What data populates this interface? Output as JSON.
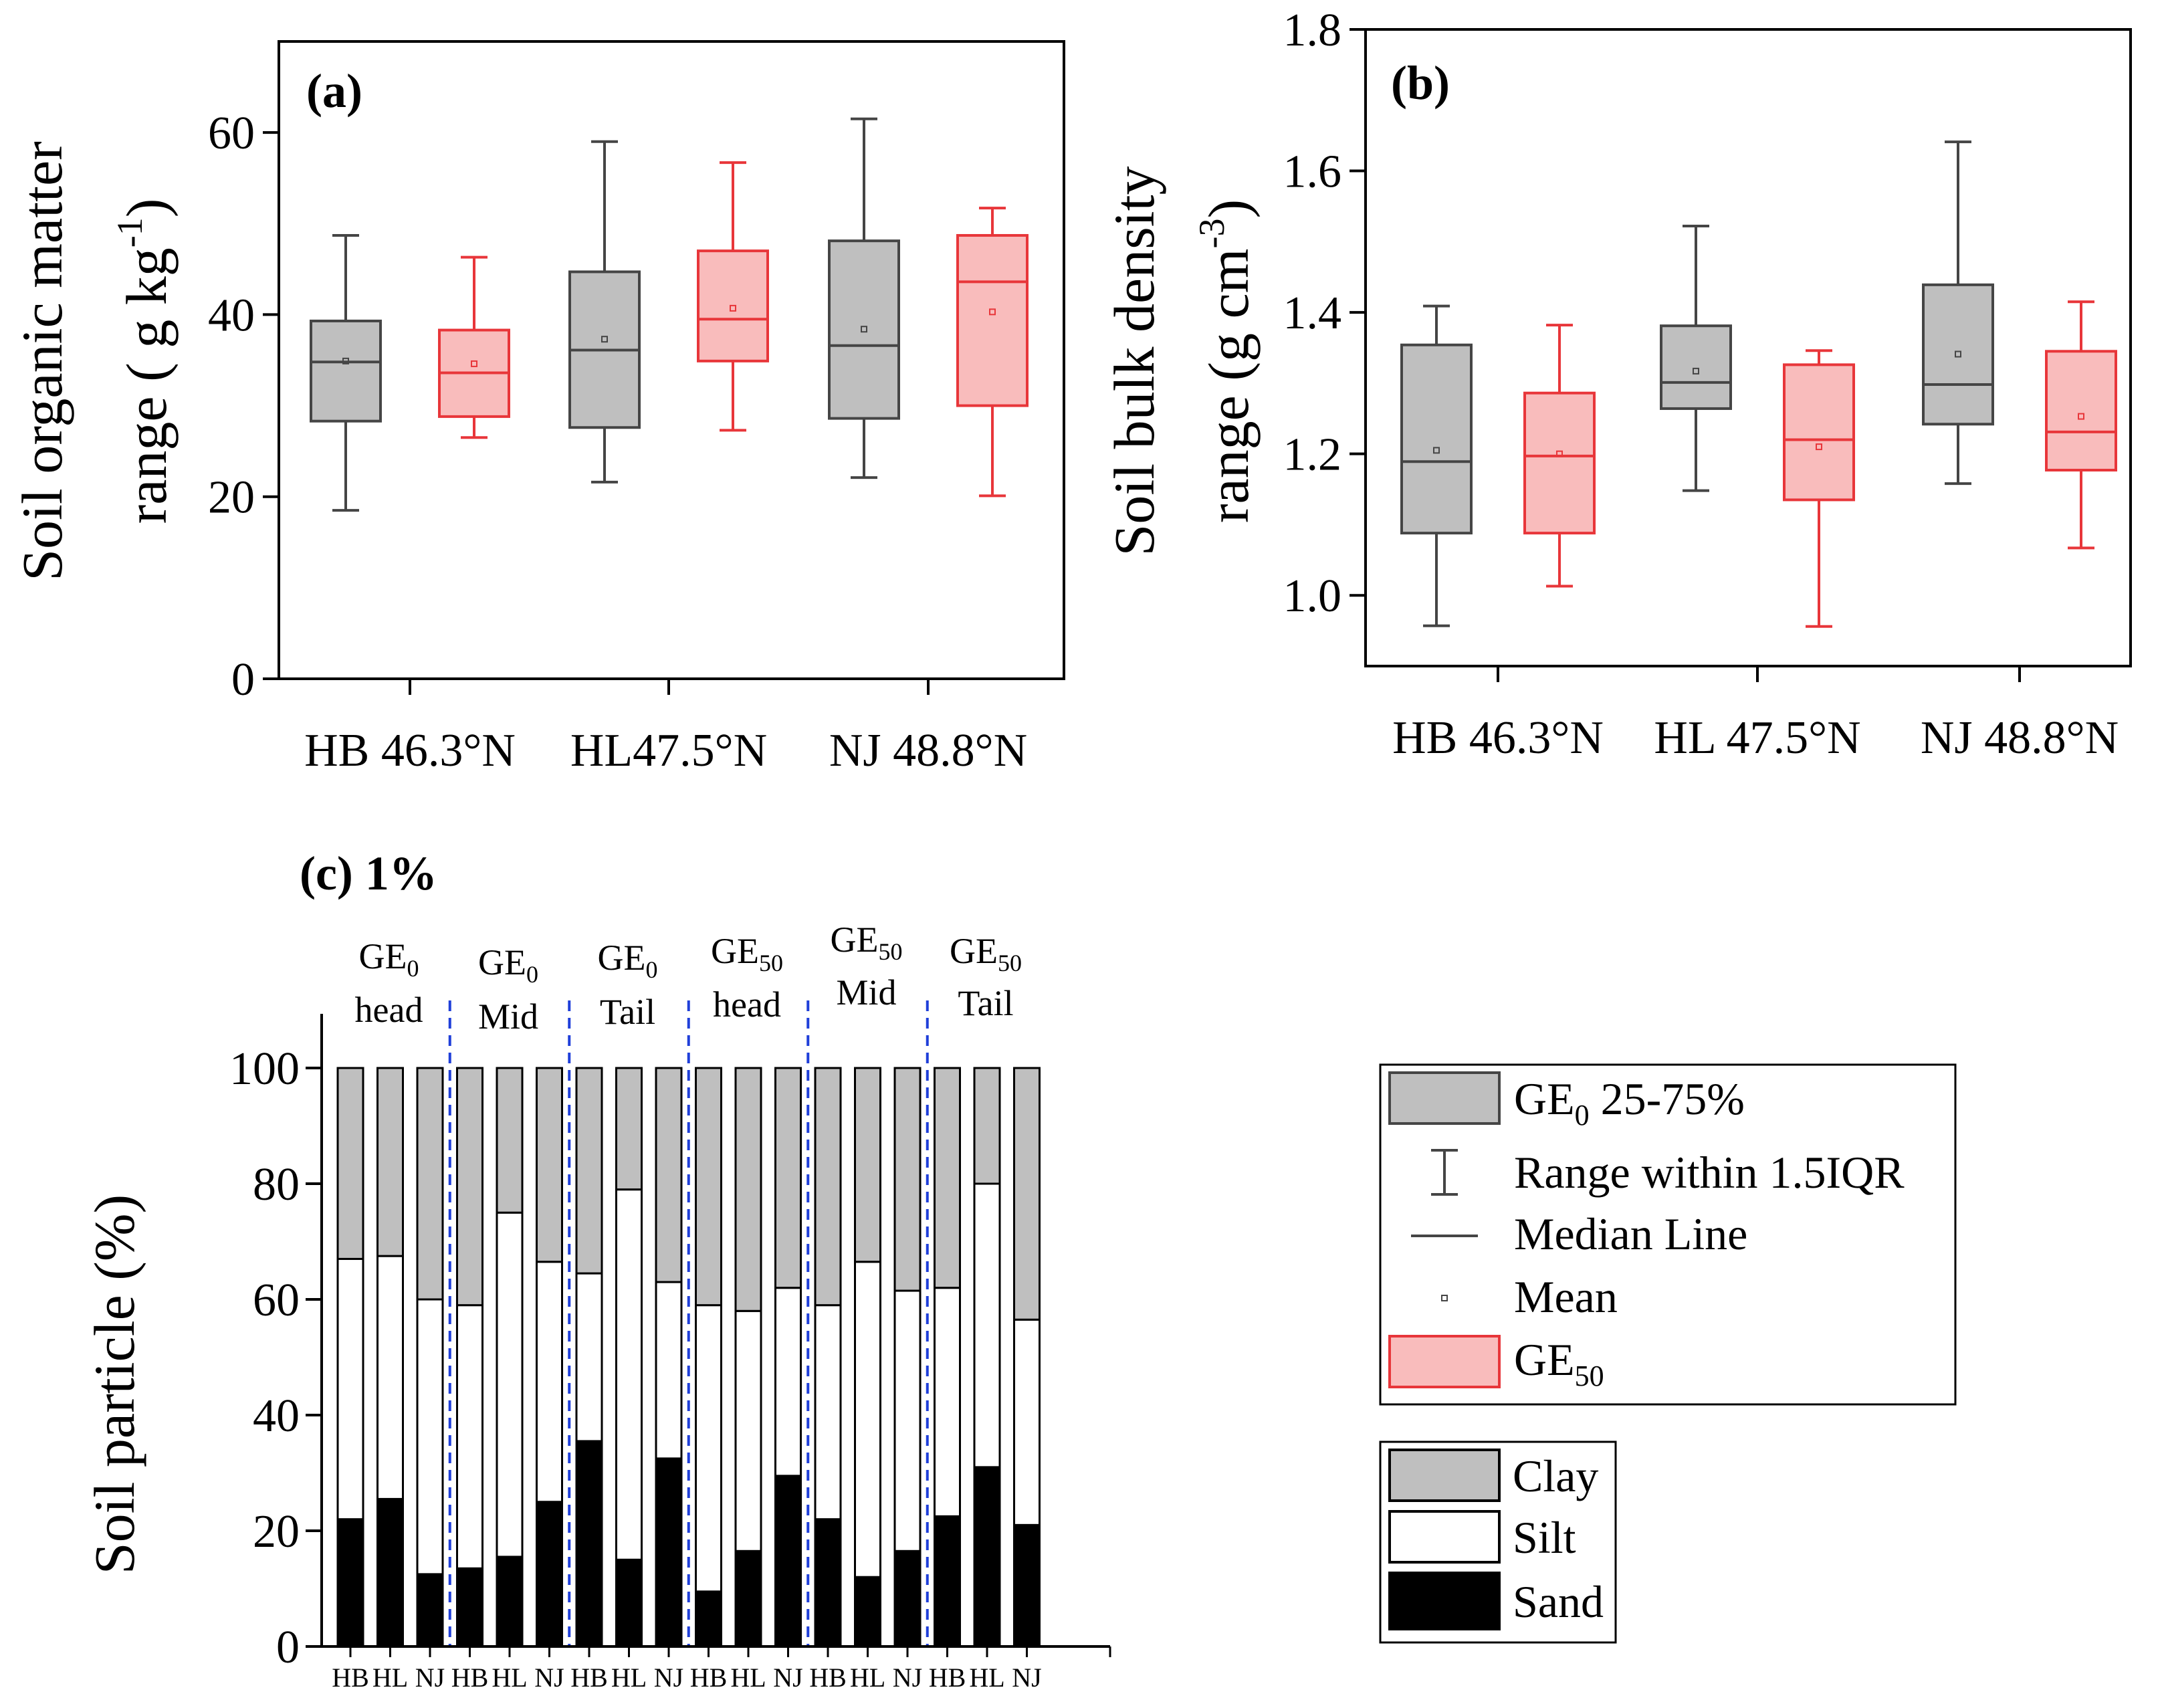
{
  "colors": {
    "ge0_fill": "#bfbfbf",
    "ge0_stroke": "#454545",
    "ge50_fill": "#f9bcbc",
    "ge50_stroke": "#e8363a",
    "clay": "#bfbfbf",
    "silt": "#ffffff",
    "sand": "#000000",
    "divider": "#1f3fd9",
    "axis": "#000000"
  },
  "chart_data": [
    {
      "type": "box",
      "panel": "a",
      "title": "(a)",
      "ylabel_line1": "Soil organic matter",
      "ylabel_line2": "range ( g kg",
      "ylabel_sup": "-1",
      "ylabel_end": ")",
      "ylim": [
        0,
        70
      ],
      "yticks": [
        0,
        20,
        40,
        60
      ],
      "yticklabels": [
        "0",
        "20",
        "40",
        "60"
      ],
      "categories": [
        "HB 46.3°N",
        "HL47.5°N",
        "NJ 48.8°N"
      ],
      "series": [
        {
          "name": "GE0",
          "boxes": [
            {
              "whisker_low": 18.5,
              "q1": 28.3,
              "median": 34.8,
              "q3": 39.3,
              "whisker_high": 48.7,
              "mean": 34.9
            },
            {
              "whisker_low": 21.6,
              "q1": 27.6,
              "median": 36.1,
              "q3": 44.7,
              "whisker_high": 59.0,
              "mean": 37.3
            },
            {
              "whisker_low": 22.1,
              "q1": 28.6,
              "median": 36.6,
              "q3": 48.1,
              "whisker_high": 61.5,
              "mean": 38.4
            }
          ]
        },
        {
          "name": "GE50",
          "boxes": [
            {
              "whisker_low": 26.5,
              "q1": 28.8,
              "median": 33.6,
              "q3": 38.3,
              "whisker_high": 46.3,
              "mean": 34.6
            },
            {
              "whisker_low": 27.3,
              "q1": 34.9,
              "median": 39.5,
              "q3": 47.0,
              "whisker_high": 56.7,
              "mean": 40.7
            },
            {
              "whisker_low": 20.1,
              "q1": 30.0,
              "median": 43.6,
              "q3": 48.7,
              "whisker_high": 51.7,
              "mean": 40.3
            }
          ]
        }
      ]
    },
    {
      "type": "box",
      "panel": "b",
      "title": "(b)",
      "ylabel_line1": "Soil bulk density",
      "ylabel_line2": "range (g cm",
      "ylabel_sup": "-3",
      "ylabel_end": ")",
      "ylim": [
        0.9,
        1.8
      ],
      "yticks": [
        1.0,
        1.2,
        1.4,
        1.6,
        1.8
      ],
      "yticklabels": [
        "1.0",
        "1.2",
        "1.4",
        "1.6",
        "1.8"
      ],
      "categories": [
        "HB 46.3°N",
        "HL 47.5°N",
        "NJ 48.8°N"
      ],
      "series": [
        {
          "name": "GE0",
          "boxes": [
            {
              "whisker_low": 0.957,
              "q1": 1.088,
              "median": 1.189,
              "q3": 1.354,
              "whisker_high": 1.409,
              "mean": 1.205
            },
            {
              "whisker_low": 1.148,
              "q1": 1.264,
              "median": 1.301,
              "q3": 1.381,
              "whisker_high": 1.522,
              "mean": 1.317
            },
            {
              "whisker_low": 1.158,
              "q1": 1.242,
              "median": 1.298,
              "q3": 1.439,
              "whisker_high": 1.641,
              "mean": 1.341
            }
          ]
        },
        {
          "name": "GE50",
          "boxes": [
            {
              "whisker_low": 1.013,
              "q1": 1.088,
              "median": 1.197,
              "q3": 1.286,
              "whisker_high": 1.382,
              "mean": 1.2
            },
            {
              "whisker_low": 0.956,
              "q1": 1.135,
              "median": 1.22,
              "q3": 1.326,
              "whisker_high": 1.346,
              "mean": 1.21
            },
            {
              "whisker_low": 1.067,
              "q1": 1.177,
              "median": 1.231,
              "q3": 1.345,
              "whisker_high": 1.415,
              "mean": 1.253
            }
          ]
        }
      ]
    },
    {
      "type": "stacked_bar",
      "panel": "c",
      "title": "(c) 1%",
      "ylabel": "Soil particle (%)",
      "ylim": [
        0,
        100
      ],
      "yticks": [
        0,
        20,
        40,
        60,
        80,
        100
      ],
      "yticklabels": [
        "0",
        "20",
        "40",
        "60",
        "80",
        "100"
      ],
      "categories": [
        "HB",
        "HL",
        "NJ",
        "HB",
        "HL",
        "NJ",
        "HB",
        "HL",
        "NJ",
        "HB",
        "HL",
        "NJ",
        "HB",
        "HL",
        "NJ",
        "HB",
        "HL",
        "NJ"
      ],
      "groups": [
        {
          "base": "GE",
          "sub": "0",
          "position": "head"
        },
        {
          "base": "GE",
          "sub": "0",
          "position": "Mid"
        },
        {
          "base": "GE",
          "sub": "0",
          "position": "Tail"
        },
        {
          "base": "GE",
          "sub": "50",
          "position": "head"
        },
        {
          "base": "GE",
          "sub": "50",
          "position": "Mid"
        },
        {
          "base": "GE",
          "sub": "50",
          "position": "Tail"
        }
      ],
      "series": [
        {
          "name": "Sand",
          "values": [
            22,
            25.5,
            12.5,
            13.5,
            15.5,
            25,
            35.5,
            15,
            32.5,
            9.5,
            16.5,
            29.5,
            22,
            12,
            16.5,
            22.5,
            31,
            21
          ]
        },
        {
          "name": "Silt",
          "values": [
            45,
            42,
            47.5,
            45.5,
            59.5,
            41.5,
            29,
            64,
            30.5,
            49.5,
            41.5,
            32.5,
            37,
            54.5,
            45,
            39.5,
            49,
            35.5
          ]
        },
        {
          "name": "Clay",
          "values": [
            33,
            32.5,
            40,
            41,
            25,
            33.5,
            35.5,
            21,
            37,
            41,
            42,
            38,
            41,
            33.5,
            38.5,
            38,
            20,
            43.5
          ]
        }
      ]
    }
  ],
  "legend_box": {
    "ge0_label": "GE",
    "ge0_sub": "0",
    "ge0_rest": " 25-75%",
    "range_label": "Range within 1.5IQR",
    "median_label": "Median Line",
    "mean_label": "Mean",
    "ge50_label": "GE",
    "ge50_sub": "50"
  },
  "legend_particle": {
    "clay_label": "Clay",
    "silt_label": "Silt",
    "sand_label": "Sand"
  }
}
